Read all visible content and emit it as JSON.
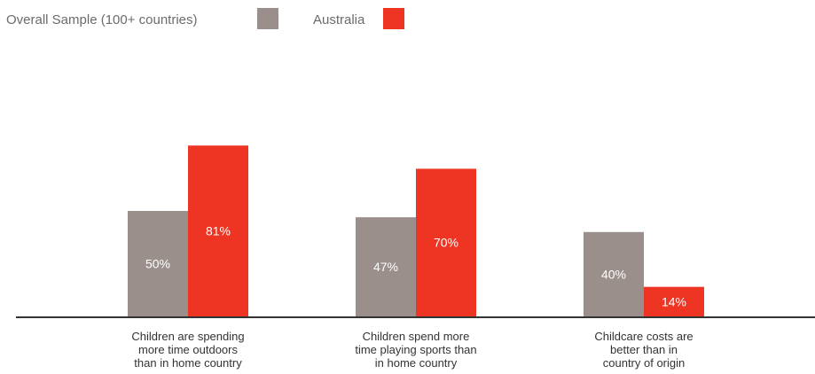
{
  "chart_data": {
    "type": "bar",
    "title": "",
    "xlabel": "",
    "ylabel": "",
    "ylim": [
      0,
      100
    ],
    "grid": false,
    "legend_position": "top-left",
    "categories": [
      [
        "Children are spending",
        "more time outdoors",
        "than in home country"
      ],
      [
        "Children spend more",
        "time playing sports than",
        "in home country"
      ],
      [
        "Childcare costs are",
        "better than in",
        "country of origin"
      ]
    ],
    "series": [
      {
        "name": "Overall Sample (100+ countries)",
        "values": [
          50,
          47,
          40
        ],
        "labels": [
          "50%",
          "47%",
          "40%"
        ],
        "color": "#9b8f8c"
      },
      {
        "name": "Australia",
        "values": [
          81,
          70,
          14
        ],
        "labels": [
          "81%",
          "70%",
          "14%"
        ],
        "color": "#ee3524"
      }
    ]
  }
}
